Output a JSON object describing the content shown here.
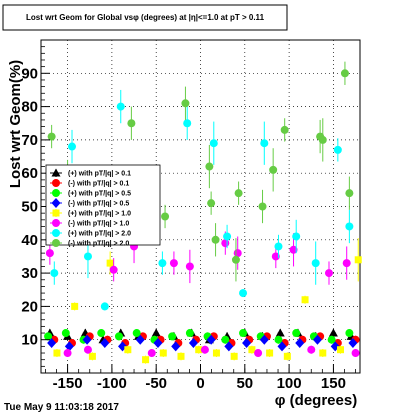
{
  "chart_data": {
    "type": "scatter",
    "title": "Lost wrt Geom for Global vsφ (degrees) at |η|<=1.0 at pT > 0.11",
    "xlabel": "φ (degrees)",
    "ylabel": "Lost wrt Geom(%)",
    "xlim": [
      -180,
      180
    ],
    "ylim": [
      0,
      100
    ],
    "x_ticks": [
      -150,
      -100,
      -50,
      0,
      50,
      100,
      150
    ],
    "y_ticks": [
      10,
      20,
      30,
      40,
      50,
      60,
      70,
      80,
      90
    ],
    "grid": true,
    "legend_position": "top-left",
    "footer": "Tue May  9 11:03:18 2017",
    "series": [
      {
        "name": "(+) with pT/|q| > 0.1",
        "color": "#000000",
        "marker": "triangle",
        "x": [
          -170,
          -150,
          -130,
          -110,
          -90,
          -70,
          -50,
          -30,
          -10,
          10,
          30,
          50,
          70,
          90,
          110,
          130,
          150,
          170
        ],
        "y": [
          12,
          11,
          12,
          10,
          12,
          11,
          12,
          11,
          12,
          10,
          11,
          12,
          11,
          12,
          12,
          11,
          12,
          11
        ]
      },
      {
        "name": "(-) with pT/|q| > 0.1",
        "color": "#ff0000",
        "marker": "circle",
        "x": [
          -165,
          -145,
          -125,
          -105,
          -85,
          -65,
          -45,
          -25,
          -5,
          15,
          35,
          55,
          75,
          95,
          115,
          135,
          155,
          175
        ],
        "y": [
          10,
          9,
          11,
          10,
          9,
          11,
          10,
          9,
          10,
          11,
          9,
          10,
          11,
          9,
          10,
          11,
          9,
          10
        ]
      },
      {
        "name": "(+) with pT/|q| > 0.5",
        "color": "#00ff00",
        "marker": "circle",
        "x": [
          -172,
          -152,
          -132,
          -112,
          -92,
          -72,
          -52,
          -32,
          -12,
          8,
          28,
          48,
          68,
          88,
          108,
          128,
          148,
          168
        ],
        "y": [
          11,
          12,
          10,
          12,
          11,
          12,
          10,
          11,
          12,
          11,
          10,
          12,
          11,
          10,
          12,
          11,
          10,
          12
        ]
      },
      {
        "name": "(-) with pT/|q| > 0.5",
        "color": "#0000ff",
        "marker": "diamond",
        "x": [
          -168,
          -148,
          -128,
          -108,
          -88,
          -68,
          -48,
          -28,
          -8,
          12,
          32,
          52,
          72,
          92,
          112,
          132,
          152,
          172
        ],
        "y": [
          9,
          8,
          10,
          9,
          8,
          10,
          9,
          8,
          9,
          10,
          8,
          9,
          10,
          8,
          9,
          10,
          8,
          9
        ]
      },
      {
        "name": "(+) with pT/|q| > 1.0",
        "color": "#ffff00",
        "marker": "square",
        "x": [
          -162,
          -142,
          -122,
          -102,
          -82,
          -62,
          -42,
          -22,
          -2,
          18,
          38,
          58,
          78,
          98,
          118,
          138,
          158,
          178
        ],
        "y": [
          6,
          20,
          5,
          33,
          7,
          4,
          6,
          5,
          7,
          6,
          5,
          7,
          6,
          5,
          22,
          6,
          7,
          34
        ]
      },
      {
        "name": "(-) with pT/|q| > 1.0",
        "color": "#ff00ff",
        "marker": "circle",
        "x": [
          -170,
          -150,
          -127,
          -98,
          -75,
          -55,
          -30,
          -12,
          5,
          28,
          42,
          65,
          85,
          105,
          125,
          145,
          165,
          175
        ],
        "y": [
          36,
          6,
          7,
          31,
          38,
          6,
          33,
          32,
          7,
          39,
          36,
          6,
          35,
          37,
          7,
          30,
          33,
          6
        ]
      },
      {
        "name": "(+) with pT/|q| > 2.0",
        "color": "#00ffff",
        "marker": "circle",
        "x": [
          -165,
          -145,
          -127,
          -108,
          -90,
          -60,
          -43,
          -15,
          15,
          30,
          48,
          72,
          88,
          108,
          130,
          155,
          168
        ],
        "y": [
          30,
          68,
          35,
          20,
          80,
          56,
          33,
          75,
          69,
          41,
          24,
          69,
          38,
          41,
          33,
          67,
          44
        ]
      },
      {
        "name": "(-) with pT/|q| > 2.0",
        "color": "#66cc44",
        "marker": "circle",
        "x": [
          -168,
          -150,
          -128,
          -110,
          -78,
          -62,
          -40,
          -17,
          10,
          12,
          17,
          40,
          43,
          70,
          82,
          95,
          135,
          138,
          163,
          168
        ],
        "y": [
          71,
          59,
          45,
          55,
          75,
          52,
          47,
          81,
          62,
          51,
          40,
          34,
          54,
          50,
          61,
          73,
          71,
          70,
          90,
          54
        ]
      }
    ]
  }
}
